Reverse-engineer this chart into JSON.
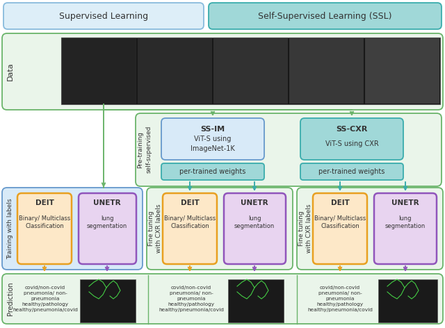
{
  "colors": {
    "light_blue_fill": "#ddeef8",
    "light_blue_edge": "#88bbdd",
    "teal_fill": "#a0d8d8",
    "teal_edge": "#3aacac",
    "green_fill": "#eaf5ea",
    "green_edge": "#6ab46a",
    "blue_fill": "#d8eaf8",
    "blue_edge": "#6699cc",
    "orange_fill": "#fde8c8",
    "orange_edge": "#e8a020",
    "purple_fill": "#e8d4f0",
    "purple_edge": "#9055bb",
    "arrow_green": "#6ab46a",
    "arrow_orange": "#e8a020",
    "arrow_purple": "#9055bb",
    "arrow_teal": "#3aacac",
    "text": "#333333",
    "white": "#ffffff",
    "xray_bg": "#111111"
  },
  "supervised_label": "Supervised Learning",
  "ssl_label": "Self-Supervised Learning (SSL)",
  "data_label": "Data",
  "pretraining_label": "Pre-training\nself-supervised",
  "training_label": "Training with labels",
  "finetuning_label": "Fine tuning\nwith CXR labels",
  "prediction_label": "Prediction",
  "ss_im_title": "SS-IM",
  "ss_im_subtitle": "ViT-S using\nImageNet-1K",
  "ss_cxr_title": "SS-CXR",
  "ss_cxr_subtitle": "ViT-S using CXR",
  "pretrained_weights": "per-trained weights",
  "deit_label": "DEIT",
  "unetr_label": "UNETR",
  "deit_sub": "Binary/ Multiclass\nClassification",
  "unetr_sub": "lung\nsegmentation",
  "pred_text": "covid/non-covid\npneumonia/ non-\npneumonia\nhealthy/pathology\nhealthy/pneumonia/covid"
}
